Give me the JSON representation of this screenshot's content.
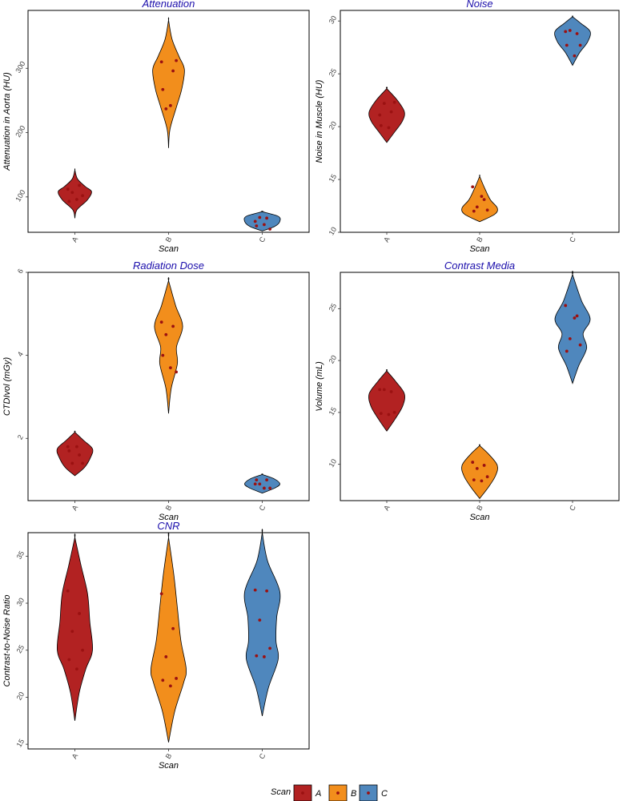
{
  "chart_data": [
    {
      "type": "violin",
      "title": "Attenuation",
      "xlabel": "Scan",
      "ylabel": "Attenuation in Aorta (HU)",
      "categories": [
        "A",
        "B",
        "C"
      ],
      "yticks": [
        100,
        200,
        300
      ],
      "ylim": [
        45,
        390
      ],
      "series": [
        {
          "category": "A",
          "values": [
            112,
            118,
            107,
            102,
            93,
            96
          ],
          "violin": [
            [
              67,
              0
            ],
            [
              80,
              0.12
            ],
            [
              95,
              0.7
            ],
            [
              108,
              0.95
            ],
            [
              116,
              0.6
            ],
            [
              128,
              0.15
            ],
            [
              142,
              0
            ]
          ]
        },
        {
          "category": "B",
          "values": [
            310,
            296,
            237,
            312,
            267,
            242
          ],
          "violin": [
            [
              176,
              0
            ],
            [
              205,
              0.08
            ],
            [
              240,
              0.45
            ],
            [
              268,
              0.75
            ],
            [
              298,
              0.9
            ],
            [
              318,
              0.6
            ],
            [
              345,
              0.2
            ],
            [
              375,
              0
            ]
          ]
        },
        {
          "category": "C",
          "values": [
            62,
            67,
            68,
            50,
            55,
            57
          ],
          "violin": [
            [
              47,
              0
            ],
            [
              54,
              0.7
            ],
            [
              62,
              1.0
            ],
            [
              70,
              0.9
            ],
            [
              77,
              0
            ]
          ]
        }
      ]
    },
    {
      "type": "violin",
      "title": "Noise",
      "xlabel": "Scan",
      "ylabel": "Noise in Muscle (HU)",
      "categories": [
        "A",
        "B",
        "C"
      ],
      "yticks": [
        10,
        15,
        20,
        25,
        30
      ],
      "ylim": [
        10,
        31
      ],
      "series": [
        {
          "category": "A",
          "values": [
            21.1,
            21.4,
            22.2,
            22.3,
            20.1,
            19.9
          ],
          "violin": [
            [
              18.5,
              0
            ],
            [
              19.5,
              0.45
            ],
            [
              20.5,
              0.88
            ],
            [
              21.4,
              1.0
            ],
            [
              22.5,
              0.6
            ],
            [
              23.6,
              0
            ]
          ]
        },
        {
          "category": "B",
          "values": [
            14.3,
            13.1,
            12.4,
            12.1,
            12.0,
            13.4
          ],
          "violin": [
            [
              11.0,
              0
            ],
            [
              11.7,
              0.85
            ],
            [
              12.3,
              1.0
            ],
            [
              13.1,
              0.6
            ],
            [
              14.3,
              0.25
            ],
            [
              15.3,
              0
            ]
          ]
        },
        {
          "category": "C",
          "values": [
            29.0,
            28.8,
            29.1,
            27.7,
            27.7,
            26.7
          ],
          "violin": [
            [
              25.8,
              0
            ],
            [
              27.0,
              0.4
            ],
            [
              28.0,
              0.85
            ],
            [
              29.0,
              1.0
            ],
            [
              29.8,
              0.45
            ],
            [
              30.4,
              0
            ]
          ]
        }
      ]
    },
    {
      "type": "violin",
      "title": "Radiation Dose",
      "xlabel": "Scan",
      "ylabel": "CTDIvol (mGy)",
      "categories": [
        "A",
        "B",
        "C"
      ],
      "yticks": [
        2,
        4,
        6
      ],
      "ylim": [
        0.5,
        6.0
      ],
      "series": [
        {
          "category": "A",
          "values": [
            1.8,
            1.6,
            1.4,
            1.4,
            1.7,
            1.8
          ],
          "violin": [
            [
              1.1,
              0
            ],
            [
              1.3,
              0.55
            ],
            [
              1.55,
              0.9
            ],
            [
              1.75,
              1.0
            ],
            [
              1.95,
              0.5
            ],
            [
              2.15,
              0
            ]
          ]
        },
        {
          "category": "B",
          "values": [
            4.8,
            4.7,
            4.5,
            3.6,
            4.0,
            3.7
          ],
          "violin": [
            [
              2.6,
              0
            ],
            [
              3.2,
              0.15
            ],
            [
              3.8,
              0.5
            ],
            [
              4.2,
              0.45
            ],
            [
              4.7,
              0.8
            ],
            [
              5.2,
              0.4
            ],
            [
              5.8,
              0
            ]
          ]
        },
        {
          "category": "C",
          "values": [
            0.9,
            1.0,
            0.9,
            0.8,
            1.0,
            0.8
          ],
          "violin": [
            [
              0.68,
              0
            ],
            [
              0.8,
              0.7
            ],
            [
              0.9,
              1.0
            ],
            [
              1.02,
              0.7
            ],
            [
              1.13,
              0
            ]
          ]
        }
      ]
    },
    {
      "type": "violin",
      "title": "Contrast Media",
      "xlabel": "Scan",
      "ylabel": "Volume (mL)",
      "categories": [
        "A",
        "B",
        "C"
      ],
      "yticks": [
        10,
        15,
        20,
        25
      ],
      "ylim": [
        6.5,
        28.5
      ],
      "series": [
        {
          "category": "A",
          "values": [
            17.2,
            17.0,
            17.2,
            15.0,
            14.9,
            14.8
          ],
          "violin": [
            [
              13.2,
              0
            ],
            [
              14.3,
              0.45
            ],
            [
              15.6,
              0.9
            ],
            [
              16.8,
              1.0
            ],
            [
              18.0,
              0.5
            ],
            [
              19.0,
              0
            ]
          ]
        },
        {
          "category": "B",
          "values": [
            10.2,
            9.9,
            9.6,
            8.8,
            8.5,
            8.4
          ],
          "violin": [
            [
              6.7,
              0
            ],
            [
              7.8,
              0.5
            ],
            [
              8.9,
              0.9
            ],
            [
              9.9,
              1.0
            ],
            [
              11.0,
              0.5
            ],
            [
              11.8,
              0
            ]
          ]
        },
        {
          "category": "C",
          "values": [
            25.3,
            24.3,
            22.1,
            21.5,
            20.9,
            24.1
          ],
          "violin": [
            [
              17.8,
              0
            ],
            [
              19.5,
              0.35
            ],
            [
              21.2,
              0.8
            ],
            [
              22.6,
              0.6
            ],
            [
              24.0,
              1.0
            ],
            [
              25.8,
              0.5
            ],
            [
              28.3,
              0
            ]
          ]
        }
      ]
    },
    {
      "type": "violin",
      "title": "CNR",
      "xlabel": "Scan",
      "ylabel": "Contrast-to-Noise Ratio",
      "categories": [
        "A",
        "B",
        "C"
      ],
      "yticks": [
        15,
        20,
        25,
        30,
        35
      ],
      "ylim": [
        14.5,
        37.5
      ],
      "series": [
        {
          "category": "A",
          "values": [
            31.3,
            28.9,
            27.0,
            25.0,
            24.0,
            23.0
          ],
          "violin": [
            [
              17.5,
              0
            ],
            [
              20.5,
              0.25
            ],
            [
              23.0,
              0.62
            ],
            [
              25.0,
              1.0
            ],
            [
              28.0,
              0.85
            ],
            [
              31.0,
              0.72
            ],
            [
              34.0,
              0.35
            ],
            [
              37.0,
              0
            ]
          ]
        },
        {
          "category": "B",
          "values": [
            31.0,
            27.3,
            24.3,
            22.0,
            21.8,
            21.2
          ],
          "violin": [
            [
              15.2,
              0
            ],
            [
              18.5,
              0.35
            ],
            [
              21.5,
              0.85
            ],
            [
              23.0,
              1.0
            ],
            [
              26.0,
              0.7
            ],
            [
              29.5,
              0.5
            ],
            [
              33.0,
              0.3
            ],
            [
              37.0,
              0
            ]
          ]
        },
        {
          "category": "C",
          "values": [
            31.4,
            31.3,
            28.2,
            25.2,
            24.4,
            24.3
          ],
          "violin": [
            [
              18.0,
              0
            ],
            [
              21.0,
              0.35
            ],
            [
              24.0,
              0.9
            ],
            [
              26.0,
              0.78
            ],
            [
              28.5,
              0.82
            ],
            [
              31.2,
              1.0
            ],
            [
              34.5,
              0.3
            ],
            [
              37.5,
              0
            ]
          ]
        }
      ]
    }
  ],
  "colors": {
    "A": "#b22222",
    "B": "#f28e1c",
    "C": "#4f87bd",
    "point": "#9b1111",
    "title": "#1a0dab"
  },
  "legend": {
    "title": "Scan",
    "items": [
      "A",
      "B",
      "C"
    ]
  }
}
